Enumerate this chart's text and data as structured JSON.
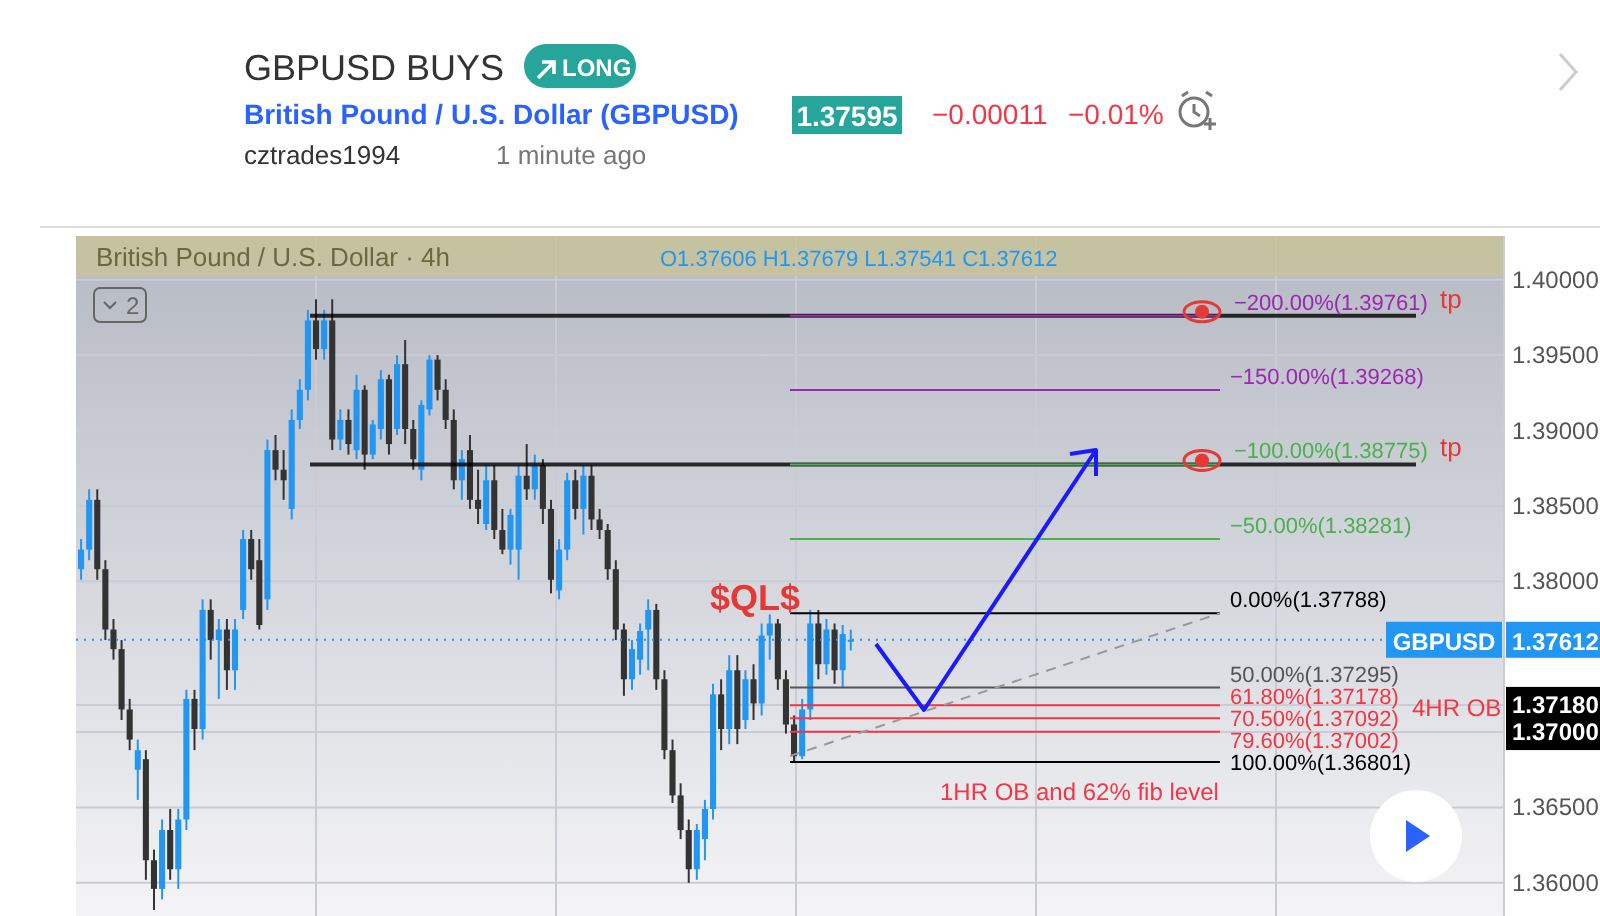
{
  "chart_data": {
    "type": "candlestick",
    "title": "GBPUSD BUYS",
    "subtitle": "British Pound / U.S. Dollar (GBPUSD)",
    "categories": [
      null,
      null,
      null,
      null,
      null,
      null,
      null,
      null,
      null,
      null,
      null,
      null,
      null,
      null,
      null,
      null,
      null,
      null,
      null,
      null,
      null,
      null,
      null,
      null,
      null,
      null,
      null,
      null,
      null,
      null,
      null,
      null,
      null,
      null,
      null,
      null,
      null,
      null,
      null,
      null,
      null,
      null,
      null,
      null,
      null,
      null,
      null,
      null,
      null,
      null,
      null,
      null,
      null,
      null,
      null,
      null,
      null,
      null,
      null,
      null,
      null,
      null,
      null,
      null,
      null,
      null,
      null,
      null,
      null,
      null,
      null,
      null,
      null,
      null,
      null,
      null,
      null,
      null,
      null,
      null,
      null,
      null,
      null,
      null,
      null,
      null,
      null,
      null,
      null,
      null,
      null,
      null,
      null,
      null,
      null,
      null,
      null,
      null,
      null,
      null,
      null,
      null,
      null,
      null,
      null,
      null,
      null,
      null,
      null,
      null,
      null,
      null,
      null,
      null,
      null,
      null,
      null,
      null,
      null,
      null,
      null,
      null,
      null,
      null,
      null,
      null,
      null,
      null,
      null,
      null,
      null,
      null,
      null,
      null,
      null,
      null,
      null,
      null,
      null,
      null,
      null,
      null,
      null,
      null,
      null,
      null,
      null,
      null,
      null,
      null,
      null,
      null,
      null,
      null,
      null,
      null,
      null,
      null,
      null,
      null,
      null,
      null,
      null,
      null,
      null,
      null,
      null,
      null,
      null,
      null,
      null,
      null,
      null,
      null,
      null,
      null
    ],
    "ohlc": [
      [
        1.3808,
        1.3828,
        1.3801,
        1.3821
      ],
      [
        1.3821,
        1.3861,
        1.3814,
        1.3854
      ],
      [
        1.3854,
        1.3861,
        1.3801,
        1.3808
      ],
      [
        1.3808,
        1.3814,
        1.3761,
        1.3768
      ],
      [
        1.3768,
        1.3775,
        1.3748,
        1.3755
      ],
      [
        1.3755,
        1.3761,
        1.3708,
        1.3715
      ],
      [
        1.3715,
        1.3722,
        1.3688,
        1.3695
      ],
      [
        1.3675,
        1.3695,
        1.3655,
        1.3688
      ],
      [
        1.3682,
        1.3688,
        1.3602,
        1.3615
      ],
      [
        1.3615,
        1.3622,
        1.3582,
        1.3596
      ],
      [
        1.3596,
        1.3642,
        1.3589,
        1.3635
      ],
      [
        1.3635,
        1.3649,
        1.3602,
        1.3609
      ],
      [
        1.3609,
        1.3649,
        1.3596,
        1.3642
      ],
      [
        1.3642,
        1.3728,
        1.3635,
        1.3722
      ],
      [
        1.3722,
        1.3728,
        1.3688,
        1.3702
      ],
      [
        1.3702,
        1.3788,
        1.3695,
        1.3781
      ],
      [
        1.3781,
        1.3788,
        1.3748,
        1.3761
      ],
      [
        1.3761,
        1.3775,
        1.3722,
        1.3768
      ],
      [
        1.3768,
        1.3775,
        1.3728,
        1.3741
      ],
      [
        1.3741,
        1.3775,
        1.3728,
        1.3768
      ],
      [
        1.3781,
        1.3834,
        1.3775,
        1.3828
      ],
      [
        1.3828,
        1.3834,
        1.3801,
        1.3808
      ],
      [
        1.3814,
        1.3828,
        1.3768,
        1.3771
      ],
      [
        1.3788,
        1.3894,
        1.3781,
        1.3887
      ],
      [
        1.3887,
        1.3897,
        1.3867,
        1.3874
      ],
      [
        1.3874,
        1.3887,
        1.3854,
        1.3867
      ],
      [
        1.3848,
        1.3914,
        1.3841,
        1.3907
      ],
      [
        1.3907,
        1.3934,
        1.3901,
        1.3927
      ],
      [
        1.3927,
        1.398,
        1.392,
        1.3973
      ],
      [
        1.3973,
        1.3987,
        1.3947,
        1.3954
      ],
      [
        1.3954,
        1.398,
        1.3947,
        1.3973
      ],
      [
        1.3973,
        1.3987,
        1.3887,
        1.3894
      ],
      [
        1.3894,
        1.3914,
        1.3887,
        1.3907
      ],
      [
        1.3907,
        1.3914,
        1.3884,
        1.3891
      ],
      [
        1.3887,
        1.3937,
        1.3881,
        1.3927
      ],
      [
        1.3927,
        1.393,
        1.3874,
        1.3884
      ],
      [
        1.3884,
        1.3907,
        1.3881,
        1.3904
      ],
      [
        1.3901,
        1.394,
        1.3894,
        1.3934
      ],
      [
        1.3934,
        1.3937,
        1.3884,
        1.3891
      ],
      [
        1.3901,
        1.395,
        1.3897,
        1.3944
      ],
      [
        1.3944,
        1.396,
        1.3891,
        1.3901
      ],
      [
        1.3901,
        1.3907,
        1.3874,
        1.3881
      ],
      [
        1.3874,
        1.392,
        1.3867,
        1.3917
      ],
      [
        1.3914,
        1.395,
        1.391,
        1.3947
      ],
      [
        1.3947,
        1.395,
        1.392,
        1.3927
      ],
      [
        1.3927,
        1.3934,
        1.3901,
        1.3907
      ],
      [
        1.3907,
        1.3914,
        1.3861,
        1.3867
      ],
      [
        1.3867,
        1.3887,
        1.3854,
        1.3881
      ],
      [
        1.3887,
        1.3897,
        1.3848,
        1.3854
      ],
      [
        1.3854,
        1.3874,
        1.3838,
        1.3848
      ],
      [
        1.3838,
        1.3877,
        1.3834,
        1.3867
      ],
      [
        1.3867,
        1.3877,
        1.3828,
        1.3834
      ],
      [
        1.3834,
        1.3848,
        1.3818,
        1.3821
      ],
      [
        1.3821,
        1.3848,
        1.3811,
        1.3844
      ],
      [
        1.3821,
        1.3877,
        1.3801,
        1.387
      ],
      [
        1.387,
        1.3891,
        1.3854,
        1.3861
      ],
      [
        1.3861,
        1.3884,
        1.3854,
        1.3877
      ],
      [
        1.3877,
        1.3881,
        1.3838,
        1.3848
      ],
      [
        1.3848,
        1.3854,
        1.3792,
        1.3801
      ],
      [
        1.3794,
        1.3828,
        1.3788,
        1.3821
      ],
      [
        1.3821,
        1.3872,
        1.3814,
        1.3867
      ],
      [
        1.3867,
        1.3874,
        1.3841,
        1.3848
      ],
      [
        1.3848,
        1.3877,
        1.3831,
        1.387
      ],
      [
        1.387,
        1.3877,
        1.3834,
        1.3841
      ],
      [
        1.3841,
        1.3848,
        1.3828,
        1.3834
      ],
      [
        1.3834,
        1.3838,
        1.3801,
        1.3808
      ],
      [
        1.3808,
        1.3814,
        1.3761,
        1.3768
      ],
      [
        1.3768,
        1.3772,
        1.3724,
        1.3735
      ],
      [
        1.3735,
        1.3761,
        1.3728,
        1.3755
      ],
      [
        1.3748,
        1.3772,
        1.3738,
        1.3767
      ],
      [
        1.3768,
        1.3788,
        1.3741,
        1.3781
      ],
      [
        1.3781,
        1.3785,
        1.3728,
        1.3735
      ],
      [
        1.3735,
        1.3741,
        1.3682,
        1.3688
      ],
      [
        1.3688,
        1.3695,
        1.3653,
        1.3658
      ],
      [
        1.3658,
        1.3666,
        1.3629,
        1.3635
      ],
      [
        1.3635,
        1.3642,
        1.36,
        1.3609
      ],
      [
        1.3609,
        1.3639,
        1.3602,
        1.3635
      ],
      [
        1.3629,
        1.3655,
        1.3615,
        1.3649
      ],
      [
        1.3649,
        1.3732,
        1.3642,
        1.3725
      ],
      [
        1.3725,
        1.3735,
        1.3688,
        1.3702
      ],
      [
        1.3702,
        1.3751,
        1.3692,
        1.3741
      ],
      [
        1.3741,
        1.3751,
        1.3692,
        1.3702
      ],
      [
        1.3708,
        1.3741,
        1.3702,
        1.3735
      ],
      [
        1.3735,
        1.3745,
        1.3708,
        1.3719
      ],
      [
        1.3719,
        1.3772,
        1.3711,
        1.3764
      ],
      [
        1.3764,
        1.3778,
        1.3748,
        1.3772
      ],
      [
        1.3772,
        1.3775,
        1.3728,
        1.3735
      ],
      [
        1.3735,
        1.3741,
        1.3699,
        1.3705
      ],
      [
        1.3705,
        1.3711,
        1.368,
        1.3684
      ],
      [
        1.3684,
        1.3722,
        1.3682,
        1.3715
      ],
      [
        1.3715,
        1.3781,
        1.3708,
        1.3772
      ],
      [
        1.3772,
        1.3781,
        1.3735,
        1.3745
      ],
      [
        1.3745,
        1.3775,
        1.3738,
        1.3768
      ],
      [
        1.3768,
        1.3772,
        1.3732,
        1.3741
      ],
      [
        1.3741,
        1.3771,
        1.373,
        1.3765
      ],
      [
        1.37606,
        1.37679,
        1.37541,
        1.37612
      ],
      null,
      null,
      null,
      null,
      null,
      null,
      null,
      null,
      null,
      null,
      null,
      null,
      null,
      null,
      null,
      null,
      null,
      null,
      null,
      null,
      null,
      null,
      null,
      null,
      null,
      null,
      null,
      null,
      null,
      null,
      null,
      null,
      null,
      null,
      null,
      null,
      null,
      null,
      null,
      null,
      null,
      null,
      null,
      null,
      null,
      null,
      null,
      null,
      null,
      null,
      null,
      null,
      null,
      null,
      null,
      null,
      null,
      null,
      null,
      null,
      null,
      null,
      null,
      null,
      null,
      null,
      null,
      null,
      null,
      null,
      null,
      null,
      null,
      null,
      null,
      null,
      null,
      null,
      null,
      null
    ],
    "colors": [
      "#2196f3",
      "#2196f3",
      "#333333",
      "#333333",
      "#333333",
      "#333333",
      "#333333",
      "#2196f3",
      "#333333",
      "#333333",
      "#2196f3",
      "#333333",
      "#2196f3",
      "#2196f3",
      "#333333",
      "#2196f3",
      "#333333",
      "#2196f3",
      "#333333",
      "#2196f3",
      "#2196f3",
      "#333333",
      "#333333",
      "#2196f3",
      "#333333",
      "#333333",
      "#2196f3",
      "#2196f3",
      "#2196f3",
      "#333333",
      "#2196f3",
      "#333333",
      "#2196f3",
      "#333333",
      "#2196f3",
      "#333333",
      "#2196f3",
      "#2196f3",
      "#333333",
      "#2196f3",
      "#333333",
      "#333333",
      "#2196f3",
      "#2196f3",
      "#333333",
      "#333333",
      "#333333",
      "#2196f3",
      "#333333",
      "#333333",
      "#2196f3",
      "#333333",
      "#333333",
      "#2196f3",
      "#2196f3",
      "#333333",
      "#2196f3",
      "#333333",
      "#333333",
      "#2196f3",
      "#2196f3",
      "#333333",
      "#2196f3",
      "#333333",
      "#333333",
      "#333333",
      "#333333",
      "#333333",
      "#2196f3",
      "#2196f3",
      "#2196f3",
      "#333333",
      "#333333",
      "#333333",
      "#333333",
      "#333333",
      "#2196f3",
      "#2196f3",
      "#2196f3",
      "#333333",
      "#2196f3",
      "#333333",
      "#2196f3",
      "#333333",
      "#2196f3",
      "#2196f3",
      "#333333",
      "#333333",
      "#333333",
      "#2196f3",
      "#2196f3",
      "#333333",
      "#2196f3",
      "#333333",
      "#2196f3",
      "#2196f3",
      null,
      null,
      null,
      null,
      null,
      null,
      null,
      null,
      null,
      null,
      null,
      null,
      null,
      null,
      null,
      null,
      null,
      null,
      null,
      null,
      null,
      null,
      null,
      null,
      null,
      null,
      null,
      null,
      null,
      null,
      null,
      null,
      null,
      null,
      null,
      null,
      null,
      null,
      null,
      null,
      null,
      null,
      null,
      null,
      null,
      null,
      null,
      null,
      null,
      null,
      null,
      null,
      null,
      null,
      null,
      null,
      null,
      null,
      null,
      null,
      null,
      null,
      null,
      null,
      null,
      null,
      null,
      null,
      null,
      null,
      null,
      null,
      null,
      null,
      null,
      null,
      null,
      null,
      null,
      null
    ],
    "ylim": [
      1.3578,
      1.4029
    ],
    "yticks": [
      {
        "value": 1.36,
        "label": "1.36000"
      },
      {
        "value": 1.365,
        "label": "1.36500"
      },
      {
        "value": 1.37,
        "label": "1.37000"
      },
      {
        "value": 1.3718,
        "label": "1.37180"
      },
      {
        "value": 1.38,
        "label": "1.38000"
      },
      {
        "value": 1.385,
        "label": "1.38500"
      },
      {
        "value": 1.39,
        "label": "1.39000"
      },
      {
        "value": 1.395,
        "label": "1.39500"
      },
      {
        "value": 1.4,
        "label": "1.40000"
      }
    ],
    "grid": true,
    "ref_lines": [
      {
        "axis": "y",
        "value": 1.39761,
        "color": "#000000"
      },
      {
        "axis": "y",
        "value": 1.39761,
        "label": "−200.00%(1.39761)",
        "color": "#9c27b0"
      },
      {
        "axis": "y",
        "value": 1.39268,
        "label": "−150.00%(1.39268)",
        "color": "#9c27b0"
      },
      {
        "axis": "y",
        "value": 1.38775,
        "color": "#000000"
      },
      {
        "axis": "y",
        "value": 1.38775,
        "label": "−100.00%(1.38775)",
        "color": "#4caf50"
      },
      {
        "axis": "y",
        "value": 1.38281,
        "label": "−50.00%(1.38281)",
        "color": "#4caf50"
      },
      {
        "axis": "y",
        "value": 1.37788,
        "label": "0.00%(1.37788)",
        "color": "#000000"
      },
      {
        "axis": "y",
        "value": 1.37612,
        "label": "GBPUSD",
        "color": "#2196f3",
        "line_style": "dotted"
      },
      {
        "axis": "y",
        "value": 1.37295,
        "label": "50.00%(1.37295)",
        "color": "#555555"
      },
      {
        "axis": "y",
        "value": 1.37178,
        "label": "61.80%(1.37178)",
        "color": "#f23645"
      },
      {
        "axis": "y",
        "value": 1.37092,
        "label": "70.50%(1.37092)",
        "color": "#f23645"
      },
      {
        "axis": "y",
        "value": 1.37002,
        "label": "79.60%(1.37002)",
        "color": "#f23645"
      },
      {
        "axis": "y",
        "value": 1.36801,
        "label": "100.00%(1.36801)",
        "color": "#000000"
      }
    ],
    "annotations": [
      "LONG",
      "1.37595",
      "−0.00011",
      "−0.01%",
      "cztrades1994",
      "1 minute ago",
      "British Pound / U.S. Dollar · 4h",
      "O1.37606 H1.37679 L1.37541 C1.37612",
      "2",
      "$QL$",
      "tp",
      "tp",
      "1HR OB and 62% fib level",
      "4HR OB",
      "1.37612"
    ]
  }
}
